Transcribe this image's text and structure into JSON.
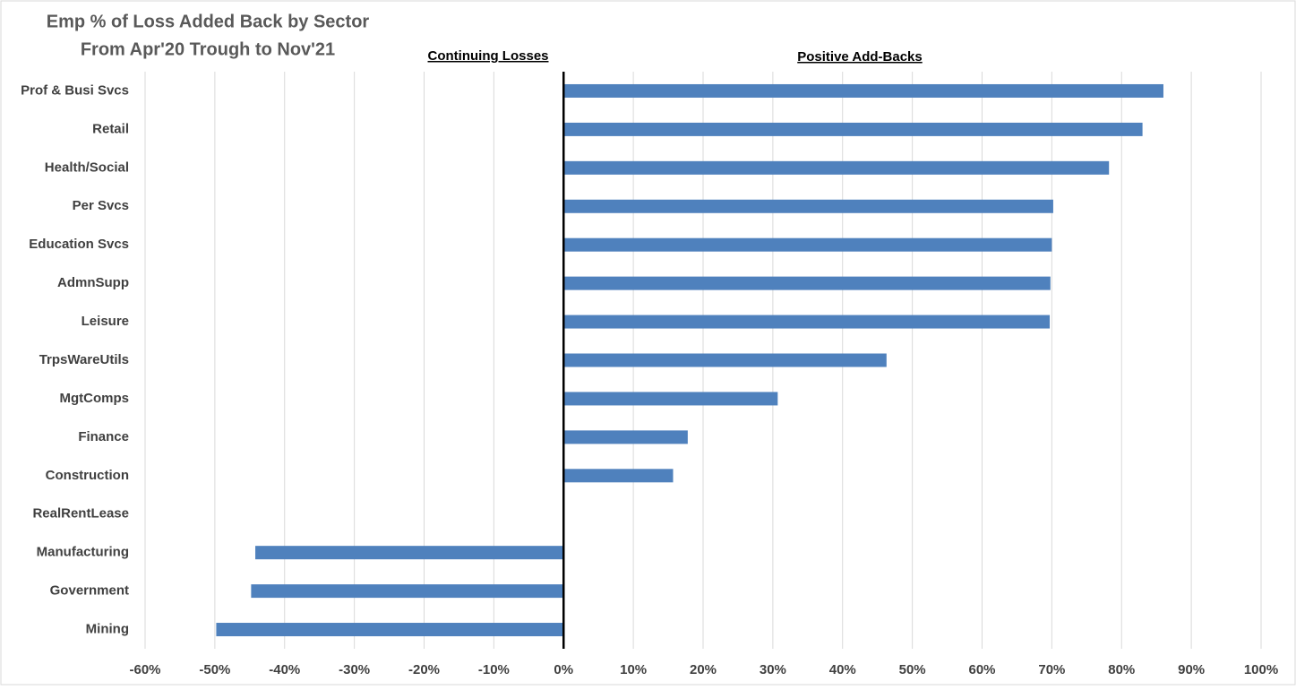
{
  "chart_data": {
    "type": "barh",
    "title": "Emp % of Loss Added Back by Sector",
    "subtitle": "From Apr'20 Trough to Nov'21",
    "annotations": [
      "Continuing Losses",
      "Positive Add-Backs"
    ],
    "categories": [
      "Prof & Busi Svcs",
      "Retail",
      "Health/Social",
      "Per Svcs",
      "Education Svcs",
      "AdmnSupp",
      "Leisure",
      "TrpsWareUtils",
      "MgtComps",
      "Finance",
      "Construction",
      "RealRentLease",
      "Manufacturing",
      "Government",
      "Mining"
    ],
    "values": [
      86,
      83,
      78.2,
      70.2,
      70,
      69.8,
      69.7,
      46.3,
      30.7,
      17.8,
      15.7,
      0,
      -44.2,
      -44.8,
      -49.8
    ],
    "color": "#4f81bd",
    "xlim": [
      -60,
      100
    ],
    "xticks": [
      {
        "value": -60,
        "label": "-60%"
      },
      {
        "value": -50,
        "label": "-50%"
      },
      {
        "value": -40,
        "label": "-40%"
      },
      {
        "value": -30,
        "label": "-30%"
      },
      {
        "value": -20,
        "label": "-20%"
      },
      {
        "value": -10,
        "label": "-10%"
      },
      {
        "value": 0,
        "label": "0%"
      },
      {
        "value": 10,
        "label": "10%"
      },
      {
        "value": 20,
        "label": "20%"
      },
      {
        "value": 30,
        "label": "30%"
      },
      {
        "value": 40,
        "label": "40%"
      },
      {
        "value": 50,
        "label": "50%"
      },
      {
        "value": 60,
        "label": "60%"
      },
      {
        "value": 70,
        "label": "70%"
      },
      {
        "value": 80,
        "label": "80%"
      },
      {
        "value": 90,
        "label": "90%"
      },
      {
        "value": 100,
        "label": "100%"
      }
    ],
    "grid": true
  }
}
